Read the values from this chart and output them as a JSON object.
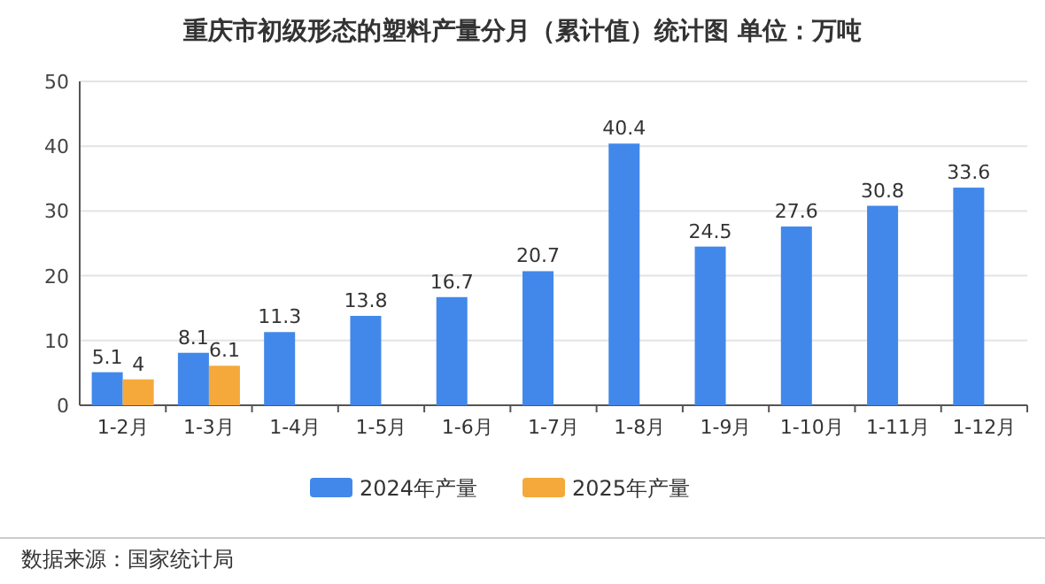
{
  "chart_data": {
    "type": "bar",
    "title": "重庆市初级形态的塑料产量分月（累计值）统计图 单位：万吨",
    "categories": [
      "1-2月",
      "1-3月",
      "1-4月",
      "1-5月",
      "1-6月",
      "1-7月",
      "1-8月",
      "1-9月",
      "1-10月",
      "1-11月",
      "1-12月"
    ],
    "series": [
      {
        "name": "2024年产量",
        "color": "#4288ea",
        "values": [
          5.1,
          8.1,
          11.3,
          13.8,
          16.7,
          20.7,
          40.4,
          24.5,
          27.6,
          30.8,
          33.6
        ]
      },
      {
        "name": "2025年产量",
        "color": "#f5a93a",
        "values": [
          4,
          6.1,
          null,
          null,
          null,
          null,
          null,
          null,
          null,
          null,
          null
        ]
      }
    ],
    "ylim": [
      0,
      50
    ],
    "yticks": [
      0,
      10,
      20,
      30,
      40,
      50
    ],
    "grid": "y",
    "legend": "bottom",
    "data_labels": true,
    "annotations": [
      "数据来源：国家统计局"
    ]
  }
}
